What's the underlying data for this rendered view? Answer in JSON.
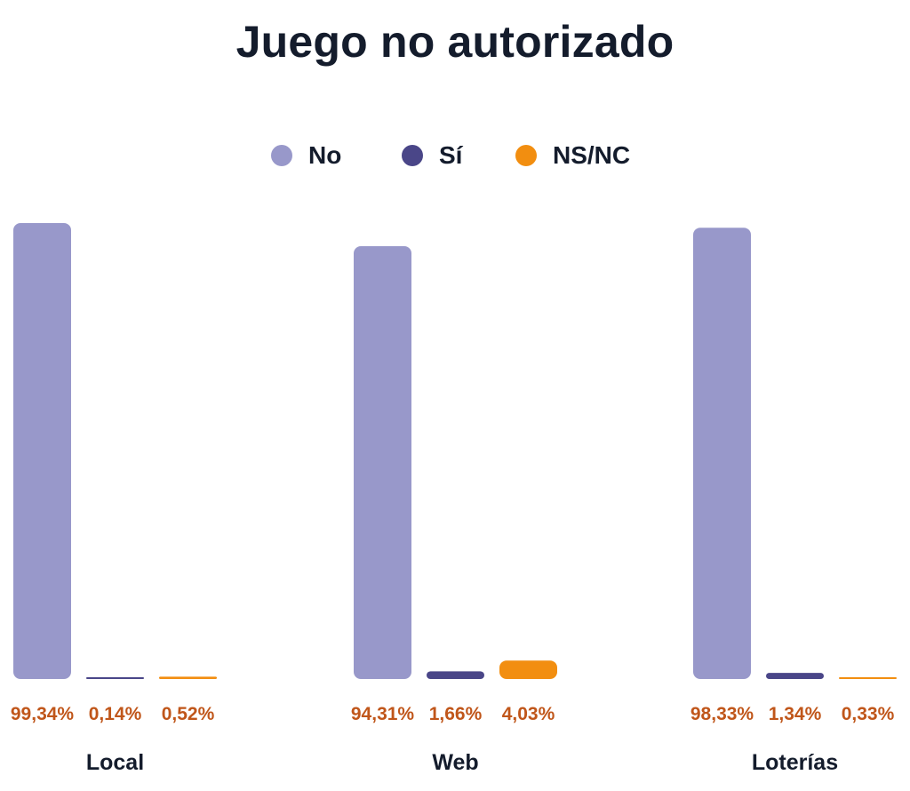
{
  "chart_data": {
    "type": "bar",
    "title": "Juego no autorizado",
    "xlabel": "",
    "ylabel": "",
    "categories": [
      "Local",
      "Web",
      "Loterías"
    ],
    "series": [
      {
        "name": "No",
        "color": "#9898ca",
        "values": [
          99.34,
          94.31,
          98.33
        ],
        "labels": [
          "99,34%",
          "94,31%",
          "98,33%"
        ]
      },
      {
        "name": "Sí",
        "color": "#4a4688",
        "values": [
          0.14,
          1.66,
          1.34
        ],
        "labels": [
          "0,14%",
          "1,66%",
          "1,34%"
        ]
      },
      {
        "name": "NS/NC",
        "color": "#f28e10",
        "values": [
          0.52,
          4.03,
          0.33
        ],
        "labels": [
          "0,52%",
          "4,03%",
          "0,33%"
        ]
      }
    ],
    "ylim": [
      0,
      100
    ],
    "grid": false,
    "legend_position": "top-center",
    "value_label_color": "#c0561a"
  }
}
